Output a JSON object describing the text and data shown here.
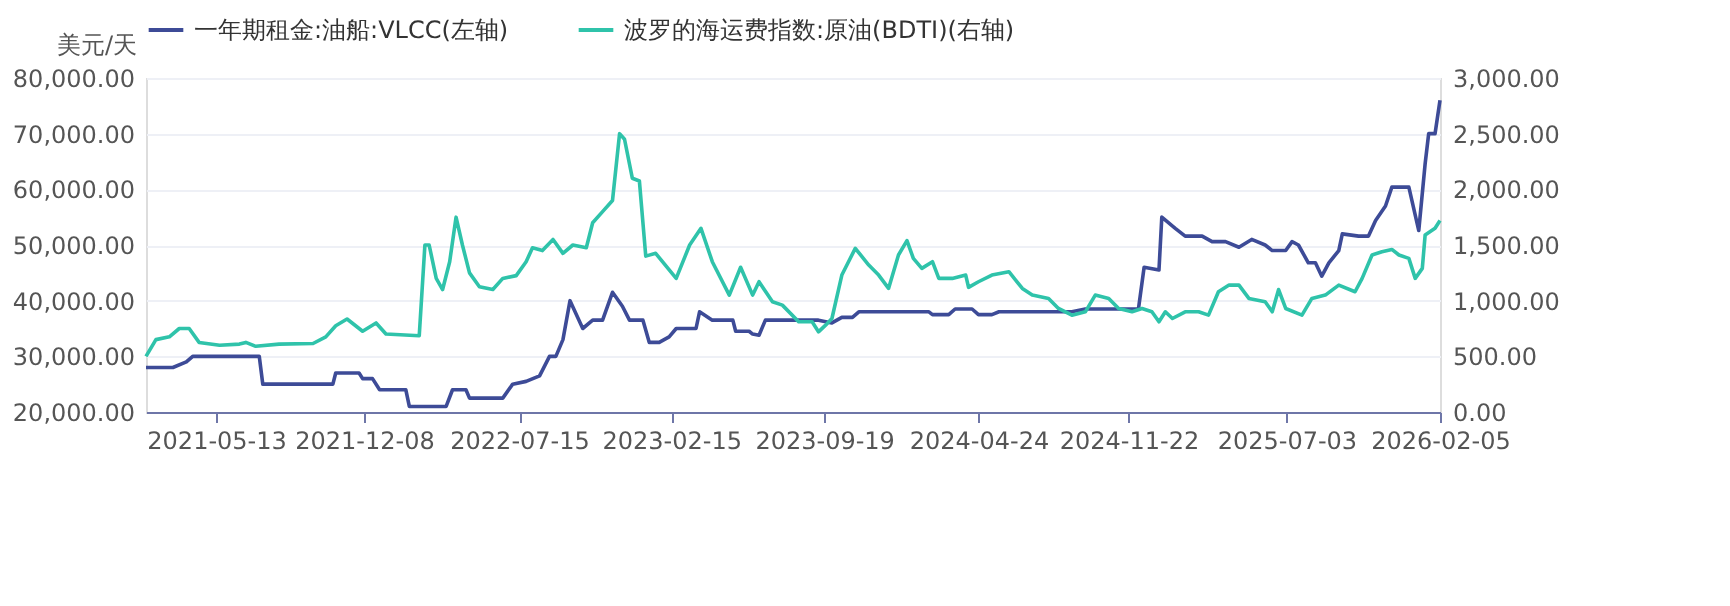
{
  "chart_data": {
    "type": "line",
    "ylabel": "美元/天",
    "legend": "top",
    "grid": "y",
    "marker": "none",
    "line_style": "solid",
    "xlim": [
      "2021-02-03",
      "2026-02-05"
    ],
    "xticks": [
      "2021-05-13",
      "2021-12-08",
      "2022-07-15",
      "2023-02-15",
      "2023-09-19",
      "2024-04-24",
      "2024-11-22",
      "2025-07-03",
      "2026-02-05"
    ],
    "ylim": [
      20000,
      80000
    ],
    "yticks": [
      {
        "value": 20000,
        "label": "20,000.00"
      },
      {
        "value": 30000,
        "label": "30,000.00"
      },
      {
        "value": 40000,
        "label": "40,000.00"
      },
      {
        "value": 50000,
        "label": "50,000.00"
      },
      {
        "value": 60000,
        "label": "60,000.00"
      },
      {
        "value": 70000,
        "label": "70,000.00"
      },
      {
        "value": 80000,
        "label": "80,000.00"
      }
    ],
    "y2lim": [
      0,
      3000
    ],
    "y2ticks": [
      {
        "value": 0,
        "label": "0.00"
      },
      {
        "value": 500,
        "label": "500.00"
      },
      {
        "value": 1000,
        "label": "1,000.00"
      },
      {
        "value": 1500,
        "label": "1,500.00"
      },
      {
        "value": 2000,
        "label": "2,000.00"
      },
      {
        "value": 2500,
        "label": "2,500.00"
      },
      {
        "value": 3000,
        "label": "3,000.00"
      }
    ],
    "series": [
      {
        "name": "一年期租金:油船:VLCC(左轴)",
        "color": "#3d4b97",
        "axis": "y",
        "x": [
          "2021-02-03",
          "2021-03-13",
          "2021-04-01",
          "2021-04-10",
          "2021-07-13",
          "2021-07-18",
          "2021-10-25",
          "2021-10-29",
          "2021-12-01",
          "2021-12-06",
          "2021-12-20",
          "2021-12-30",
          "2022-02-05",
          "2022-02-10",
          "2022-04-03",
          "2022-04-12",
          "2022-05-01",
          "2022-05-06",
          "2022-06-22",
          "2022-07-06",
          "2022-07-25",
          "2022-08-13",
          "2022-08-27",
          "2022-09-05",
          "2022-09-15",
          "2022-09-25",
          "2022-10-13",
          "2022-10-27",
          "2022-11-10",
          "2022-11-24",
          "2022-12-08",
          "2022-12-18",
          "2023-01-06",
          "2023-01-15",
          "2023-01-29",
          "2023-02-12",
          "2023-02-22",
          "2023-03-22",
          "2023-03-27",
          "2023-04-14",
          "2023-05-13",
          "2023-05-17",
          "2023-06-05",
          "2023-06-10",
          "2023-06-19",
          "2023-06-28",
          "2023-09-11",
          "2023-09-30",
          "2023-10-14",
          "2023-10-29",
          "2023-11-07",
          "2024-02-14",
          "2024-02-19",
          "2024-03-13",
          "2024-03-22",
          "2024-04-15",
          "2024-04-24",
          "2024-05-13",
          "2024-05-23",
          "2024-09-03",
          "2024-09-22",
          "2024-12-06",
          "2024-12-14",
          "2025-01-04",
          "2025-01-08",
          "2025-01-27",
          "2025-02-10",
          "2025-03-06",
          "2025-03-20",
          "2025-04-08",
          "2025-04-27",
          "2025-05-15",
          "2025-06-03",
          "2025-06-13",
          "2025-07-02",
          "2025-07-11",
          "2025-07-20",
          "2025-08-03",
          "2025-08-13",
          "2025-08-22",
          "2025-09-01",
          "2025-09-15",
          "2025-09-20",
          "2025-10-13",
          "2025-10-27",
          "2025-11-06",
          "2025-11-20",
          "2025-11-29",
          "2025-12-23",
          "2026-01-06",
          "2026-01-15",
          "2026-01-20",
          "2026-01-29",
          "2026-02-05"
        ],
        "values": [
          28000,
          28000,
          29000,
          30000,
          30000,
          25000,
          25000,
          27000,
          27000,
          26000,
          26000,
          24000,
          24000,
          21000,
          21000,
          24000,
          24000,
          22500,
          22500,
          25000,
          25500,
          26500,
          30000,
          30000,
          33000,
          40000,
          35000,
          36500,
          36500,
          41500,
          39000,
          36500,
          36500,
          32500,
          32500,
          33500,
          35000,
          35000,
          38000,
          36500,
          36500,
          34500,
          34500,
          34000,
          33800,
          36500,
          36500,
          36000,
          37000,
          37000,
          38000,
          38000,
          37500,
          37500,
          38500,
          38500,
          37500,
          37500,
          38000,
          38000,
          38500,
          38500,
          46000,
          45500,
          55000,
          53000,
          51600,
          51600,
          50600,
          50600,
          49600,
          51000,
          50000,
          49000,
          49000,
          50600,
          50000,
          46800,
          46800,
          44400,
          46800,
          49000,
          52000,
          51600,
          51600,
          54400,
          57000,
          60400,
          60400,
          52600,
          64600,
          70000,
          70000,
          76000
        ]
      },
      {
        "name": "波罗的海运费指数:原油(BDTI)(右轴)",
        "color": "#2fc3aa",
        "axis": "y2",
        "x": [
          "2021-02-03",
          "2021-02-17",
          "2021-03-08",
          "2021-03-22",
          "2021-04-05",
          "2021-04-19",
          "2021-05-18",
          "2021-06-15",
          "2021-06-24",
          "2021-07-08",
          "2021-08-10",
          "2021-09-27",
          "2021-10-15",
          "2021-10-29",
          "2021-11-14",
          "2021-12-06",
          "2021-12-25",
          "2022-01-08",
          "2022-02-24",
          "2022-03-04",
          "2022-03-10",
          "2022-03-20",
          "2022-03-29",
          "2022-04-08",
          "2022-04-17",
          "2022-04-26",
          "2022-05-06",
          "2022-05-20",
          "2022-06-08",
          "2022-06-22",
          "2022-07-11",
          "2022-07-25",
          "2022-08-03",
          "2022-08-17",
          "2022-09-01",
          "2022-09-15",
          "2022-09-29",
          "2022-10-18",
          "2022-10-27",
          "2022-11-10",
          "2022-11-24",
          "2022-12-04",
          "2022-12-11",
          "2022-12-22",
          "2023-01-01",
          "2023-01-10",
          "2023-01-24",
          "2023-02-22",
          "2023-03-13",
          "2023-03-29",
          "2023-04-14",
          "2023-05-08",
          "2023-05-24",
          "2023-06-10",
          "2023-06-19",
          "2023-07-08",
          "2023-07-22",
          "2023-08-14",
          "2023-09-02",
          "2023-09-11",
          "2023-09-21",
          "2023-09-30",
          "2023-10-14",
          "2023-11-02",
          "2023-11-21",
          "2023-12-05",
          "2023-12-19",
          "2024-01-02",
          "2024-01-14",
          "2024-01-23",
          "2024-02-04",
          "2024-02-19",
          "2024-02-28",
          "2024-03-18",
          "2024-04-06",
          "2024-04-10",
          "2024-04-24",
          "2024-05-13",
          "2024-06-06",
          "2024-06-25",
          "2024-07-09",
          "2024-08-01",
          "2024-08-15",
          "2024-09-03",
          "2024-09-22",
          "2024-10-06",
          "2024-10-25",
          "2024-11-08",
          "2024-11-27",
          "2024-12-11",
          "2024-12-25",
          "2025-01-04",
          "2025-01-13",
          "2025-01-23",
          "2025-02-10",
          "2025-03-01",
          "2025-03-15",
          "2025-03-29",
          "2025-04-13",
          "2025-04-27",
          "2025-05-11",
          "2025-06-03",
          "2025-06-13",
          "2025-06-22",
          "2025-07-02",
          "2025-07-25",
          "2025-08-08",
          "2025-08-27",
          "2025-09-15",
          "2025-10-08",
          "2025-10-18",
          "2025-11-01",
          "2025-11-15",
          "2025-11-29",
          "2025-12-09",
          "2025-12-23",
          "2026-01-01",
          "2026-01-11",
          "2026-01-15",
          "2026-01-29",
          "2026-02-05"
        ],
        "values": [
          500,
          650,
          675,
          750,
          750,
          625,
          600,
          610,
          625,
          590,
          610,
          615,
          675,
          775,
          835,
          725,
          800,
          700,
          685,
          1500,
          1500,
          1200,
          1100,
          1350,
          1750,
          1500,
          1250,
          1125,
          1100,
          1200,
          1225,
          1350,
          1475,
          1450,
          1550,
          1425,
          1500,
          1475,
          1700,
          1800,
          1900,
          2500,
          2450,
          2100,
          2075,
          1400,
          1425,
          1200,
          1500,
          1650,
          1350,
          1050,
          1300,
          1050,
          1170,
          990,
          960,
          810,
          810,
          720,
          780,
          840,
          1230,
          1470,
          1320,
          1230,
          1110,
          1410,
          1540,
          1380,
          1290,
          1350,
          1200,
          1200,
          1230,
          1120,
          1170,
          1230,
          1260,
          1110,
          1050,
          1020,
          930,
          870,
          900,
          1050,
          1020,
          930,
          900,
          930,
          900,
          810,
          900,
          840,
          900,
          900,
          870,
          1080,
          1140,
          1140,
          1020,
          990,
          900,
          1100,
          930,
          870,
          1020,
          1050,
          1140,
          1080,
          1200,
          1410,
          1440,
          1460,
          1410,
          1380,
          1200,
          1290,
          1590,
          1650,
          1720
        ]
      }
    ]
  }
}
